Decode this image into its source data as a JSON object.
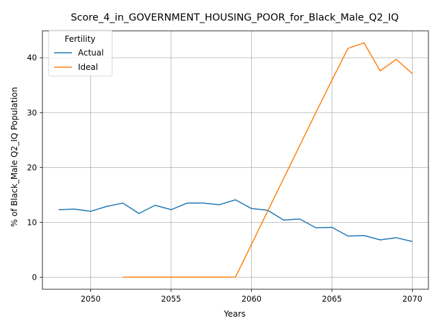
{
  "chart_data": {
    "type": "line",
    "title": "Score_4_in_GOVERNMENT_HOUSING_POOR_for_Black_Male_Q2_IQ",
    "xlabel": "Years",
    "ylabel": "% of Black_Male Q2_IQ Population",
    "xlim": [
      2047,
      2071
    ],
    "ylim": [
      -2.2,
      44.9
    ],
    "xticks": [
      2050,
      2055,
      2060,
      2065,
      2070
    ],
    "yticks": [
      0,
      10,
      20,
      30,
      40
    ],
    "grid": true,
    "legend": {
      "title": "Fertility",
      "placement": "upper-left"
    },
    "series": [
      {
        "name": "Actual",
        "color": "#1f77b4",
        "x": [
          2048,
          2049,
          2050,
          2051,
          2052,
          2053,
          2054,
          2055,
          2056,
          2057,
          2058,
          2059,
          2060,
          2061,
          2062,
          2063,
          2064,
          2065,
          2066,
          2067,
          2068,
          2069,
          2070
        ],
        "y": [
          12.3,
          12.4,
          12.0,
          12.9,
          13.5,
          11.6,
          13.1,
          12.3,
          13.5,
          13.5,
          13.2,
          14.1,
          12.5,
          12.2,
          10.4,
          10.6,
          9.0,
          9.1,
          7.5,
          7.6,
          6.8,
          7.2,
          6.5
        ]
      },
      {
        "name": "Ideal",
        "color": "#ff7f0e",
        "x": [
          2052,
          2053,
          2054,
          2055,
          2056,
          2057,
          2058,
          2059,
          2060,
          2061,
          2062,
          2063,
          2064,
          2065,
          2066,
          2067,
          2068,
          2069,
          2070
        ],
        "y": [
          0,
          0,
          0,
          0,
          0,
          0,
          0,
          0,
          6.0,
          12.0,
          18.0,
          24.0,
          30.0,
          35.9,
          41.7,
          42.7,
          37.6,
          39.7,
          37.1
        ]
      }
    ]
  }
}
